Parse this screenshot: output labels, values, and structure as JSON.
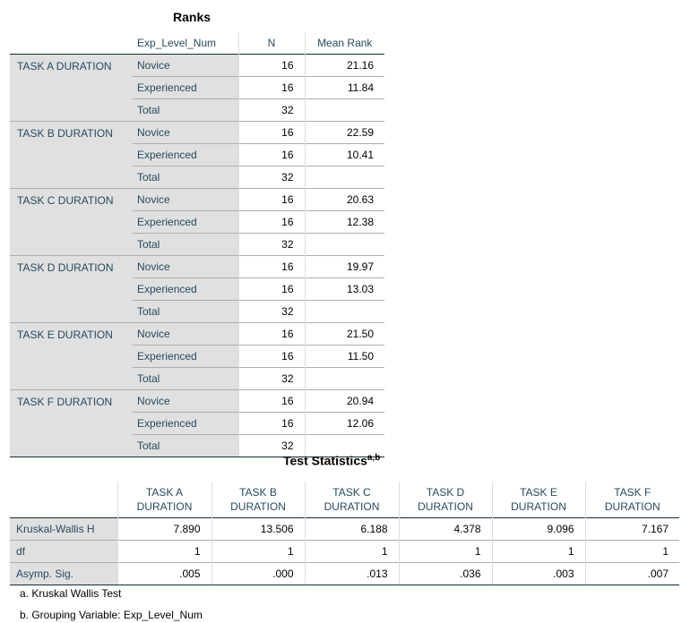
{
  "ranks": {
    "title": "Ranks",
    "headers": {
      "group": "Exp_Level_Num",
      "n": "N",
      "mean_rank": "Mean Rank"
    },
    "tasks": [
      {
        "label": "TASK A DURATION",
        "rows": [
          {
            "group": "Novice",
            "n": "16",
            "mean_rank": "21.16"
          },
          {
            "group": "Experienced",
            "n": "16",
            "mean_rank": "11.84"
          },
          {
            "group": "Total",
            "n": "32",
            "mean_rank": ""
          }
        ]
      },
      {
        "label": "TASK B DURATION",
        "rows": [
          {
            "group": "Novice",
            "n": "16",
            "mean_rank": "22.59"
          },
          {
            "group": "Experienced",
            "n": "16",
            "mean_rank": "10.41"
          },
          {
            "group": "Total",
            "n": "32",
            "mean_rank": ""
          }
        ]
      },
      {
        "label": "TASK C DURATION",
        "rows": [
          {
            "group": "Novice",
            "n": "16",
            "mean_rank": "20.63"
          },
          {
            "group": "Experienced",
            "n": "16",
            "mean_rank": "12.38"
          },
          {
            "group": "Total",
            "n": "32",
            "mean_rank": ""
          }
        ]
      },
      {
        "label": "TASK D DURATION",
        "rows": [
          {
            "group": "Novice",
            "n": "16",
            "mean_rank": "19.97"
          },
          {
            "group": "Experienced",
            "n": "16",
            "mean_rank": "13.03"
          },
          {
            "group": "Total",
            "n": "32",
            "mean_rank": ""
          }
        ]
      },
      {
        "label": "TASK E DURATION",
        "rows": [
          {
            "group": "Novice",
            "n": "16",
            "mean_rank": "21.50"
          },
          {
            "group": "Experienced",
            "n": "16",
            "mean_rank": "11.50"
          },
          {
            "group": "Total",
            "n": "32",
            "mean_rank": ""
          }
        ]
      },
      {
        "label": "TASK F DURATION",
        "rows": [
          {
            "group": "Novice",
            "n": "16",
            "mean_rank": "20.94"
          },
          {
            "group": "Experienced",
            "n": "16",
            "mean_rank": "12.06"
          },
          {
            "group": "Total",
            "n": "32",
            "mean_rank": ""
          }
        ]
      }
    ]
  },
  "test_statistics": {
    "title": "Test Statistics",
    "title_sup": "a,b",
    "columns": [
      [
        "TASK A",
        "DURATION"
      ],
      [
        "TASK B",
        "DURATION"
      ],
      [
        "TASK C",
        "DURATION"
      ],
      [
        "TASK D",
        "DURATION"
      ],
      [
        "TASK E",
        "DURATION"
      ],
      [
        "TASK F",
        "DURATION"
      ]
    ],
    "rows": [
      {
        "label": "Kruskal-Wallis H",
        "values": [
          "7.890",
          "13.506",
          "6.188",
          "4.378",
          "9.096",
          "7.167"
        ]
      },
      {
        "label": "df",
        "values": [
          "1",
          "1",
          "1",
          "1",
          "1",
          "1"
        ]
      },
      {
        "label": "Asymp. Sig.",
        "values": [
          ".005",
          ".000",
          ".013",
          ".036",
          ".003",
          ".007"
        ]
      }
    ],
    "footnotes": [
      "a. Kruskal Wallis Test",
      "b. Grouping Variable: Exp_Level_Num"
    ]
  },
  "colors": {
    "header_text": "#264a60",
    "label_bg": "#e0e0e0",
    "value_text": "#010205"
  }
}
